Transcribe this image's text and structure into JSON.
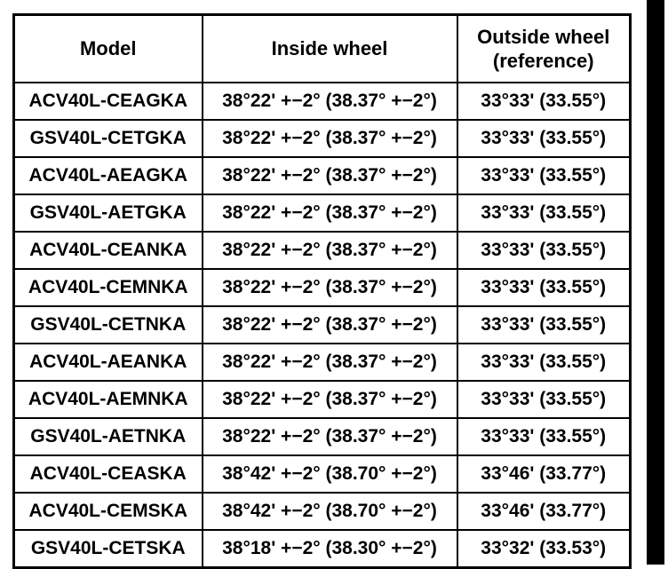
{
  "page": {
    "background": "#ffffff",
    "edge_bar_color": "#000000"
  },
  "table": {
    "header": {
      "model": "Model",
      "inside": "Inside wheel",
      "outside": "Outside wheel\n(reference)"
    },
    "rows": [
      {
        "model": "ACV40L-CEAGKA",
        "inside": "38°22' +−2° (38.37° +−2°)",
        "outside": "33°33' (33.55°)"
      },
      {
        "model": "GSV40L-CETGKA",
        "inside": "38°22' +−2° (38.37° +−2°)",
        "outside": "33°33' (33.55°)"
      },
      {
        "model": "ACV40L-AEAGKA",
        "inside": "38°22' +−2° (38.37° +−2°)",
        "outside": "33°33' (33.55°)"
      },
      {
        "model": "GSV40L-AETGKA",
        "inside": "38°22' +−2° (38.37° +−2°)",
        "outside": "33°33' (33.55°)"
      },
      {
        "model": "ACV40L-CEANKA",
        "inside": "38°22' +−2° (38.37° +−2°)",
        "outside": "33°33' (33.55°)"
      },
      {
        "model": "ACV40L-CEMNKA",
        "inside": "38°22' +−2° (38.37° +−2°)",
        "outside": "33°33' (33.55°)"
      },
      {
        "model": "GSV40L-CETNKA",
        "inside": "38°22' +−2° (38.37° +−2°)",
        "outside": "33°33' (33.55°)"
      },
      {
        "model": "ACV40L-AEANKA",
        "inside": "38°22' +−2° (38.37° +−2°)",
        "outside": "33°33' (33.55°)"
      },
      {
        "model": "ACV40L-AEMNKA",
        "inside": "38°22' +−2° (38.37° +−2°)",
        "outside": "33°33' (33.55°)"
      },
      {
        "model": "GSV40L-AETNKA",
        "inside": "38°22' +−2° (38.37° +−2°)",
        "outside": "33°33' (33.55°)"
      },
      {
        "model": "ACV40L-CEASKA",
        "inside": "38°42' +−2° (38.70° +−2°)",
        "outside": "33°46' (33.77°)"
      },
      {
        "model": "ACV40L-CEMSKA",
        "inside": "38°42' +−2° (38.70° +−2°)",
        "outside": "33°46' (33.77°)"
      },
      {
        "model": "GSV40L-CETSKA",
        "inside": "38°18' +−2° (38.30° +−2°)",
        "outside": "33°32' (33.53°)"
      }
    ]
  }
}
